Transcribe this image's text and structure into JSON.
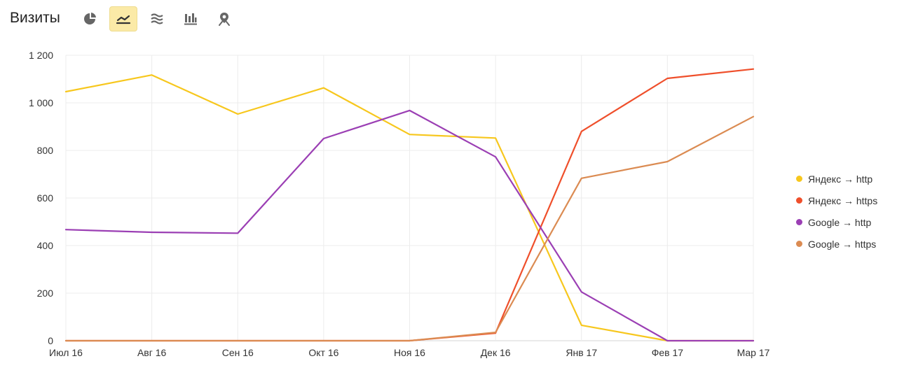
{
  "header": {
    "title": "Визиты"
  },
  "toolbar": {
    "buttons": [
      {
        "icon": "pie-chart-icon",
        "active": false
      },
      {
        "icon": "line-chart-icon",
        "active": true
      },
      {
        "icon": "area-chart-icon",
        "active": false
      },
      {
        "icon": "bar-chart-icon",
        "active": false
      },
      {
        "icon": "map-pin-icon",
        "active": false
      }
    ],
    "active_color": "#fbeaa7"
  },
  "chart_data": {
    "type": "line",
    "categories": [
      "Июл 16",
      "Авг 16",
      "Сен 16",
      "Окт 16",
      "Ноя 16",
      "Дек 16",
      "Янв 17",
      "Фев 17",
      "Мар 17"
    ],
    "y_ticks": [
      "0",
      "200",
      "400",
      "600",
      "800",
      "1 000",
      "1 200"
    ],
    "ylim": [
      0,
      1200
    ],
    "grid": true,
    "legend_position": "right",
    "series": [
      {
        "name": "Яндекс → http",
        "color": "#f7c71d",
        "values": [
          1047,
          1117,
          953,
          1063,
          867,
          852,
          65,
          0,
          0
        ]
      },
      {
        "name": "Яндекс → https",
        "color": "#ef4f2b",
        "values": [
          0,
          0,
          0,
          0,
          0,
          32,
          880,
          1103,
          1142
        ]
      },
      {
        "name": "Google → http",
        "color": "#9b3fb4",
        "values": [
          467,
          456,
          452,
          850,
          968,
          773,
          205,
          0,
          0
        ]
      },
      {
        "name": "Google → https",
        "color": "#db8b52",
        "values": [
          0,
          0,
          0,
          0,
          0,
          35,
          683,
          753,
          942
        ]
      }
    ]
  }
}
